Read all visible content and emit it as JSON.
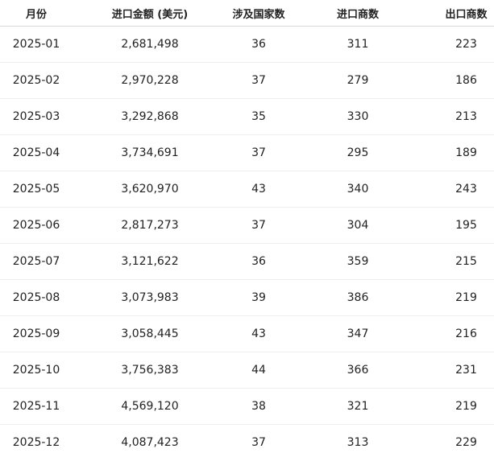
{
  "table": {
    "columns": [
      "月份",
      "进口金额 (美元)",
      "涉及国家数",
      "进口商数",
      "出口商数"
    ],
    "rows": [
      [
        "2025-01",
        "2,681,498",
        "36",
        "311",
        "223"
      ],
      [
        "2025-02",
        "2,970,228",
        "37",
        "279",
        "186"
      ],
      [
        "2025-03",
        "3,292,868",
        "35",
        "330",
        "213"
      ],
      [
        "2025-04",
        "3,734,691",
        "37",
        "295",
        "189"
      ],
      [
        "2025-05",
        "3,620,970",
        "43",
        "340",
        "243"
      ],
      [
        "2025-06",
        "2,817,273",
        "37",
        "304",
        "195"
      ],
      [
        "2025-07",
        "3,121,622",
        "36",
        "359",
        "215"
      ],
      [
        "2025-08",
        "3,073,983",
        "39",
        "386",
        "219"
      ],
      [
        "2025-09",
        "3,058,445",
        "43",
        "347",
        "216"
      ],
      [
        "2025-10",
        "3,756,383",
        "44",
        "366",
        "231"
      ],
      [
        "2025-11",
        "4,569,120",
        "38",
        "321",
        "219"
      ],
      [
        "2025-12",
        "4,087,423",
        "37",
        "313",
        "229"
      ]
    ]
  }
}
